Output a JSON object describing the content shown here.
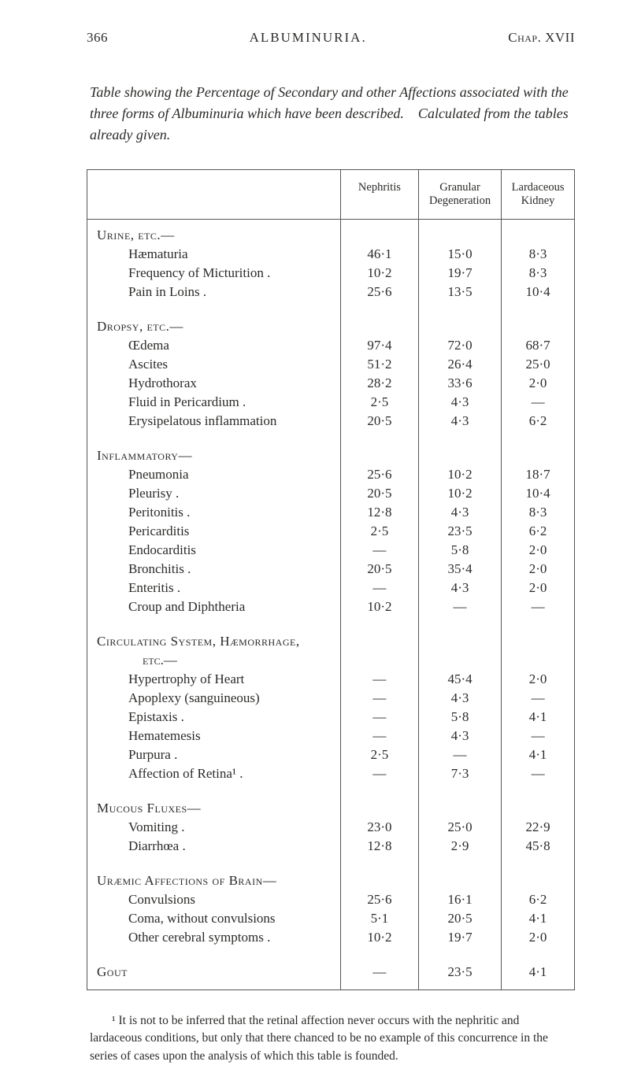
{
  "header": {
    "page": "366",
    "title": "ALBUMINURIA.",
    "chapter": "Chap. XVII"
  },
  "intro": {
    "italic_para": "Table showing the Percentage of Secondary and other Affections associated with the three forms of Albuminuria which have been described. Calculated from the tables already given."
  },
  "table": {
    "columns": [
      "",
      "Nephritis",
      "Granular Degeneration",
      "Lardaceous Kidney"
    ],
    "col_widths_pct": [
      52,
      16,
      17,
      15
    ],
    "border_color": "#555555",
    "row_fontsize": 17,
    "header_fontsize": 14.5,
    "dash": "—",
    "sections": [
      {
        "heading": "Urine, etc.—",
        "rows": [
          {
            "label": "Hæmaturia",
            "v": [
              "46·1",
              "15·0",
              "8·3"
            ]
          },
          {
            "label": "Frequency of Micturition .",
            "v": [
              "10·2",
              "19·7",
              "8·3"
            ]
          },
          {
            "label": "Pain in Loins .",
            "v": [
              "25·6",
              "13·5",
              "10·4"
            ]
          }
        ]
      },
      {
        "heading": "Dropsy, etc.—",
        "rows": [
          {
            "label": "Œdema",
            "v": [
              "97·4",
              "72·0",
              "68·7"
            ]
          },
          {
            "label": "Ascites",
            "v": [
              "51·2",
              "26·4",
              "25·0"
            ]
          },
          {
            "label": "Hydrothorax",
            "v": [
              "28·2",
              "33·6",
              "2·0"
            ]
          },
          {
            "label": "Fluid in Pericardium .",
            "v": [
              "2·5",
              "4·3",
              "—"
            ]
          },
          {
            "label": "Erysipelatous inflammation",
            "v": [
              "20·5",
              "4·3",
              "6·2"
            ]
          }
        ]
      },
      {
        "heading": "Inflammatory—",
        "rows": [
          {
            "label": "Pneumonia",
            "v": [
              "25·6",
              "10·2",
              "18·7"
            ]
          },
          {
            "label": "Pleurisy .",
            "v": [
              "20·5",
              "10·2",
              "10·4"
            ]
          },
          {
            "label": "Peritonitis .",
            "v": [
              "12·8",
              "4·3",
              "8·3"
            ]
          },
          {
            "label": "Pericarditis",
            "v": [
              "2·5",
              "23·5",
              "6·2"
            ]
          },
          {
            "label": "Endocarditis",
            "v": [
              "—",
              "5·8",
              "2·0"
            ]
          },
          {
            "label": "Bronchitis .",
            "v": [
              "20·5",
              "35·4",
              "2·0"
            ]
          },
          {
            "label": "Enteritis .",
            "v": [
              "—",
              "4·3",
              "2·0"
            ]
          },
          {
            "label": "Croup and Diphtheria",
            "v": [
              "10·2",
              "—",
              "—"
            ]
          }
        ]
      },
      {
        "heading": "Circulating System, Hæmorrhage,",
        "subheading": "etc.—",
        "rows": [
          {
            "label": "Hypertrophy of Heart",
            "v": [
              "—",
              "45·4",
              "2·0"
            ]
          },
          {
            "label": "Apoplexy (sanguineous)",
            "v": [
              "—",
              "4·3",
              "—"
            ]
          },
          {
            "label": "Epistaxis .",
            "v": [
              "—",
              "5·8",
              "4·1"
            ]
          },
          {
            "label": "Hematemesis",
            "v": [
              "—",
              "4·3",
              "—"
            ]
          },
          {
            "label": "Purpura .",
            "v": [
              "2·5",
              "—",
              "4·1"
            ]
          },
          {
            "label": "Affection of Retina¹ .",
            "v": [
              "—",
              "7·3",
              "—"
            ]
          }
        ]
      },
      {
        "heading": "Mucous Fluxes—",
        "rows": [
          {
            "label": "Vomiting .",
            "v": [
              "23·0",
              "25·0",
              "22·9"
            ]
          },
          {
            "label": "Diarrhœa .",
            "v": [
              "12·8",
              "2·9",
              "45·8"
            ]
          }
        ]
      },
      {
        "heading": "Uræmic Affections of Brain—",
        "rows": [
          {
            "label": "Convulsions",
            "v": [
              "25·6",
              "16·1",
              "6·2"
            ]
          },
          {
            "label": "Coma, without convulsions",
            "v": [
              "5·1",
              "20·5",
              "4·1"
            ]
          },
          {
            "label": "Other cerebral symptoms .",
            "v": [
              "10·2",
              "19·7",
              "2·0"
            ]
          }
        ]
      }
    ],
    "final_row": {
      "label": "Gout",
      "v": [
        "—",
        "23·5",
        "4·1"
      ]
    }
  },
  "footnote": "¹ It is not to be inferred that the retinal affection never occurs with the nephritic and lardaceous conditions, but only that there chanced to be no example of this concurrence in the series of cases upon the analysis of which this table is founded."
}
